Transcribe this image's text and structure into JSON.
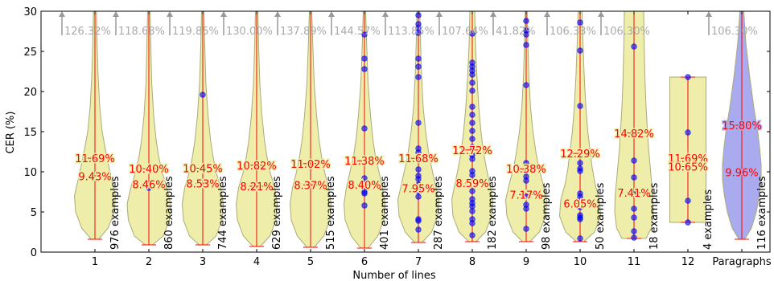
{
  "chart_data": {
    "type": "violin",
    "xlabel": "Number of lines",
    "ylabel": "CER (%)",
    "ylim": [
      0,
      30
    ],
    "yticks": [
      0,
      5,
      10,
      15,
      20,
      25,
      30
    ],
    "colors": {
      "violin_fill": "#eeeeaa",
      "violin_fill_highlight": "#aaaaee",
      "violin_edge": "#aaaa77",
      "stat_line": "#ff0000",
      "point": "#0000ff",
      "overflow_arrow": "#999999",
      "overflow_text": "#aaaaaa"
    },
    "categories": [
      {
        "label": "1",
        "mean": 11.69,
        "median": 9.43,
        "mean_label": "11.69%",
        "median_label": "9.43%",
        "count_label": "976 examples",
        "min": 1.6,
        "overflow_label": "126.32%",
        "shape": [
          [
            1.6,
            0.15
          ],
          [
            3,
            0.55
          ],
          [
            5,
            0.8
          ],
          [
            7,
            0.85
          ],
          [
            9,
            0.7
          ],
          [
            11,
            0.55
          ],
          [
            13,
            0.42
          ],
          [
            15,
            0.3
          ],
          [
            18,
            0.2
          ],
          [
            22,
            0.13
          ],
          [
            26,
            0.09
          ],
          [
            30,
            0.06
          ]
        ],
        "points": []
      },
      {
        "label": "2",
        "mean": 10.4,
        "median": 8.46,
        "mean_label": "10.40%",
        "median_label": "8.46%",
        "count_label": "860 examples",
        "min": 0.9,
        "overflow_label": "118.68%",
        "shape": [
          [
            0.9,
            0.15
          ],
          [
            2,
            0.6
          ],
          [
            4,
            0.85
          ],
          [
            6,
            0.9
          ],
          [
            8,
            0.75
          ],
          [
            10,
            0.55
          ],
          [
            12,
            0.4
          ],
          [
            14,
            0.3
          ],
          [
            17,
            0.2
          ],
          [
            21,
            0.12
          ],
          [
            26,
            0.08
          ],
          [
            30,
            0.05
          ]
        ],
        "points": [
          8
        ]
      },
      {
        "label": "3",
        "mean": 10.45,
        "median": 8.53,
        "mean_label": "10.45%",
        "median_label": "8.53%",
        "count_label": "744 examples",
        "min": 0.9,
        "overflow_label": "119.85%",
        "shape": [
          [
            0.9,
            0.15
          ],
          [
            2,
            0.55
          ],
          [
            4,
            0.8
          ],
          [
            6,
            0.85
          ],
          [
            8,
            0.75
          ],
          [
            10,
            0.55
          ],
          [
            12,
            0.42
          ],
          [
            14,
            0.32
          ],
          [
            17,
            0.22
          ],
          [
            21,
            0.13
          ],
          [
            26,
            0.08
          ],
          [
            30,
            0.05
          ]
        ],
        "points": [
          19.6
        ]
      },
      {
        "label": "4",
        "mean": 10.82,
        "median": 8.21,
        "mean_label": "10.82%",
        "median_label": "8.21%",
        "count_label": "629 examples",
        "min": 0.7,
        "overflow_label": "130.00%",
        "shape": [
          [
            0.7,
            0.15
          ],
          [
            2,
            0.55
          ],
          [
            4,
            0.8
          ],
          [
            6,
            0.85
          ],
          [
            8,
            0.75
          ],
          [
            10,
            0.55
          ],
          [
            12,
            0.42
          ],
          [
            14,
            0.32
          ],
          [
            17,
            0.22
          ],
          [
            21,
            0.13
          ],
          [
            26,
            0.08
          ],
          [
            30,
            0.05
          ]
        ],
        "points": []
      },
      {
        "label": "5",
        "mean": 11.02,
        "median": 8.37,
        "mean_label": "11.02%",
        "median_label": "8.37%",
        "count_label": "515 examples",
        "min": 0.6,
        "overflow_label": "137.89%",
        "shape": [
          [
            0.6,
            0.15
          ],
          [
            2,
            0.55
          ],
          [
            4,
            0.8
          ],
          [
            6,
            0.85
          ],
          [
            8,
            0.75
          ],
          [
            10,
            0.58
          ],
          [
            12,
            0.45
          ],
          [
            14,
            0.35
          ],
          [
            17,
            0.25
          ],
          [
            21,
            0.15
          ],
          [
            26,
            0.09
          ],
          [
            30,
            0.05
          ]
        ],
        "points": []
      },
      {
        "label": "6",
        "mean": 11.38,
        "median": 8.4,
        "mean_label": "11.38%",
        "median_label": "8.40%",
        "count_label": "401 examples",
        "min": 0.5,
        "overflow_label": "144.57%",
        "shape": [
          [
            0.5,
            0.15
          ],
          [
            2,
            0.55
          ],
          [
            4,
            0.8
          ],
          [
            6,
            0.85
          ],
          [
            8,
            0.75
          ],
          [
            10,
            0.6
          ],
          [
            12,
            0.45
          ],
          [
            14,
            0.35
          ],
          [
            17,
            0.25
          ],
          [
            21,
            0.15
          ],
          [
            26,
            0.09
          ],
          [
            30,
            0.05
          ]
        ],
        "points": [
          5.8,
          7.3,
          7.5,
          8.7,
          9.2,
          15.4,
          22.8,
          24.1,
          27.1
        ]
      },
      {
        "label": "7",
        "mean": 11.68,
        "median": 7.95,
        "mean_label": "11.68%",
        "median_label": "7.95%",
        "count_label": "287 examples",
        "min": 1.2,
        "overflow_label": "113.85%",
        "shape": [
          [
            1.2,
            0.15
          ],
          [
            2.5,
            0.55
          ],
          [
            4.5,
            0.8
          ],
          [
            6.5,
            0.85
          ],
          [
            8.5,
            0.7
          ],
          [
            10.5,
            0.55
          ],
          [
            12.5,
            0.42
          ],
          [
            15,
            0.3
          ],
          [
            18,
            0.2
          ],
          [
            22,
            0.13
          ],
          [
            26,
            0.09
          ],
          [
            30,
            0.06
          ]
        ],
        "points": [
          2.8,
          3.9,
          4.1,
          6.9,
          7.6,
          8.4,
          9.1,
          9.5,
          10.3,
          11.4,
          11.9,
          12.4,
          12.9,
          16.1,
          21.8,
          23.1,
          24.1,
          27.3,
          27.9,
          28.4,
          29.5
        ]
      },
      {
        "label": "8",
        "mean": 12.72,
        "median": 8.59,
        "mean_label": "12.72%",
        "median_label": "8.59%",
        "count_label": "182 examples",
        "min": 1.3,
        "overflow_label": "107.64%",
        "shape": [
          [
            1.3,
            0.15
          ],
          [
            2.5,
            0.55
          ],
          [
            4.5,
            0.8
          ],
          [
            6.5,
            0.85
          ],
          [
            8.5,
            0.72
          ],
          [
            10.5,
            0.58
          ],
          [
            12.5,
            0.46
          ],
          [
            15,
            0.36
          ],
          [
            18,
            0.27
          ],
          [
            22,
            0.19
          ],
          [
            26,
            0.13
          ],
          [
            30,
            0.1
          ]
        ],
        "points": [
          2.1,
          3.6,
          4.1,
          5.1,
          5.7,
          6.1,
          6.6,
          7.6,
          8.6,
          9.6,
          10.1,
          11.6,
          12.1,
          13.1,
          14.1,
          15.1,
          16.1,
          17.1,
          18.1,
          20.1,
          21.1,
          22.1,
          22.6,
          23.1,
          23.6,
          27.2
        ]
      },
      {
        "label": "9",
        "mean": 10.38,
        "median": 7.17,
        "mean_label": "10.38%",
        "median_label": "7.17%",
        "count_label": "98 examples",
        "min": 1.3,
        "overflow_label": "41.82%",
        "shape": [
          [
            1.3,
            0.15
          ],
          [
            2.5,
            0.55
          ],
          [
            4.5,
            0.8
          ],
          [
            6.5,
            0.85
          ],
          [
            8.5,
            0.7
          ],
          [
            10.5,
            0.52
          ],
          [
            12.5,
            0.4
          ],
          [
            15,
            0.28
          ],
          [
            18,
            0.18
          ],
          [
            22,
            0.11
          ],
          [
            26,
            0.07
          ],
          [
            30,
            0.04
          ]
        ],
        "points": [
          2.9,
          5.4,
          5.9,
          6.9,
          8.9,
          9.4,
          10.1,
          11.1,
          20.8,
          25.8,
          27.1,
          27.6,
          28.8
        ]
      },
      {
        "label": "10",
        "mean": 12.29,
        "median": 6.05,
        "mean_label": "12.29%",
        "median_label": "6.05%",
        "count_label": "50 examples",
        "min": 1.3,
        "overflow_label": "106.33%",
        "shape": [
          [
            1.3,
            0.15
          ],
          [
            2.5,
            0.6
          ],
          [
            4.5,
            0.85
          ],
          [
            6.5,
            0.8
          ],
          [
            8.5,
            0.62
          ],
          [
            10.5,
            0.5
          ],
          [
            12.5,
            0.42
          ],
          [
            15,
            0.32
          ],
          [
            18,
            0.24
          ],
          [
            22,
            0.17
          ],
          [
            26,
            0.12
          ],
          [
            30,
            0.08
          ]
        ],
        "points": [
          1.7,
          4.1,
          4.3,
          4.6,
          5.6,
          6.1,
          6.9,
          7.3,
          10.1,
          10.4,
          11.1,
          18.2,
          25.1,
          28.6
        ]
      },
      {
        "label": "11",
        "mean": 14.82,
        "median": 7.41,
        "mean_label": "14.82%",
        "median_label": "7.41%",
        "count_label": "18 examples",
        "min": 1.7,
        "overflow_label": "106.30%",
        "shape": [
          [
            1.7,
            0.5
          ],
          [
            3,
            0.72
          ],
          [
            5,
            0.8
          ],
          [
            7,
            0.78
          ],
          [
            9,
            0.72
          ],
          [
            11,
            0.66
          ],
          [
            13,
            0.6
          ],
          [
            15,
            0.56
          ],
          [
            18,
            0.5
          ],
          [
            22,
            0.45
          ],
          [
            26,
            0.42
          ],
          [
            30,
            0.4
          ]
        ],
        "points": [
          1.8,
          2.6,
          4.3,
          5.4,
          7.3,
          9.3,
          11.4,
          14.9,
          25.6
        ]
      },
      {
        "label": "12",
        "mean": 11.69,
        "median": 10.65,
        "mean_label": "11.69%",
        "median_label": "10.65%",
        "count_label": "4 examples",
        "min": 3.7,
        "overflow_label": "",
        "shape": [
          [
            3.7,
            0.75
          ],
          [
            21.8,
            0.75
          ]
        ],
        "points": [
          3.7,
          6.4,
          14.9,
          21.8
        ]
      },
      {
        "label": "Paragraphs",
        "mean": 15.8,
        "median": 9.96,
        "mean_label": "15.80%",
        "median_label": "9.96%",
        "count_label": "116 examples",
        "min": 1.6,
        "overflow_label": "106.30%",
        "shape": [
          [
            1.6,
            0.12
          ],
          [
            3,
            0.4
          ],
          [
            5,
            0.6
          ],
          [
            7,
            0.72
          ],
          [
            9,
            0.8
          ],
          [
            11,
            0.8
          ],
          [
            13,
            0.74
          ],
          [
            15,
            0.66
          ],
          [
            18,
            0.5
          ],
          [
            22,
            0.32
          ],
          [
            26,
            0.17
          ],
          [
            30,
            0.08
          ]
        ],
        "points": []
      }
    ]
  }
}
